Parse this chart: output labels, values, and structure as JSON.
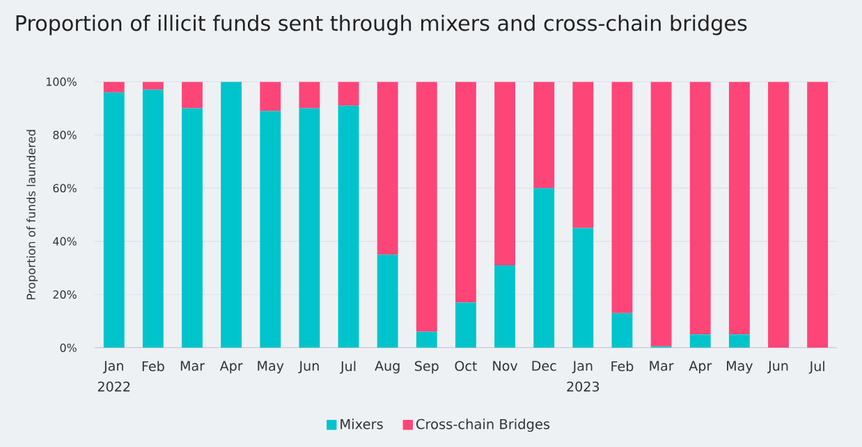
{
  "chart_data": {
    "type": "bar",
    "stacked": true,
    "title": "Proportion of illicit funds sent through mixers and cross-chain bridges",
    "ylabel": "Proportion of funds laundered",
    "categories": [
      "Jan 2022",
      "Feb",
      "Mar",
      "Apr",
      "May",
      "Jun",
      "Jul",
      "Aug",
      "Sep",
      "Oct",
      "Nov",
      "Dec",
      "Jan 2023",
      "Feb",
      "Mar",
      "Apr",
      "May",
      "Jun",
      "Jul"
    ],
    "series": [
      {
        "name": "Mixers",
        "color": "#00c4cb",
        "values": [
          96,
          97,
          90,
          100,
          89,
          90,
          91,
          35,
          6,
          17,
          31,
          60,
          45,
          13,
          0.5,
          5,
          5,
          0,
          0
        ]
      },
      {
        "name": "Cross-chain Bridges",
        "color": "#fe4578",
        "values": [
          4,
          3,
          10,
          0,
          11,
          10,
          9,
          65,
          94,
          83,
          69,
          40,
          55,
          87,
          99.5,
          95,
          95,
          100,
          100
        ]
      }
    ],
    "ylim": [
      0,
      100
    ],
    "yticks": [
      {
        "value": 0,
        "label": "0%"
      },
      {
        "value": 20,
        "label": "20%"
      },
      {
        "value": 40,
        "label": "40%"
      },
      {
        "value": 60,
        "label": "60%"
      },
      {
        "value": 80,
        "label": "80%"
      },
      {
        "value": 100,
        "label": "100%"
      }
    ],
    "grid": "y",
    "legend": "bottom"
  }
}
